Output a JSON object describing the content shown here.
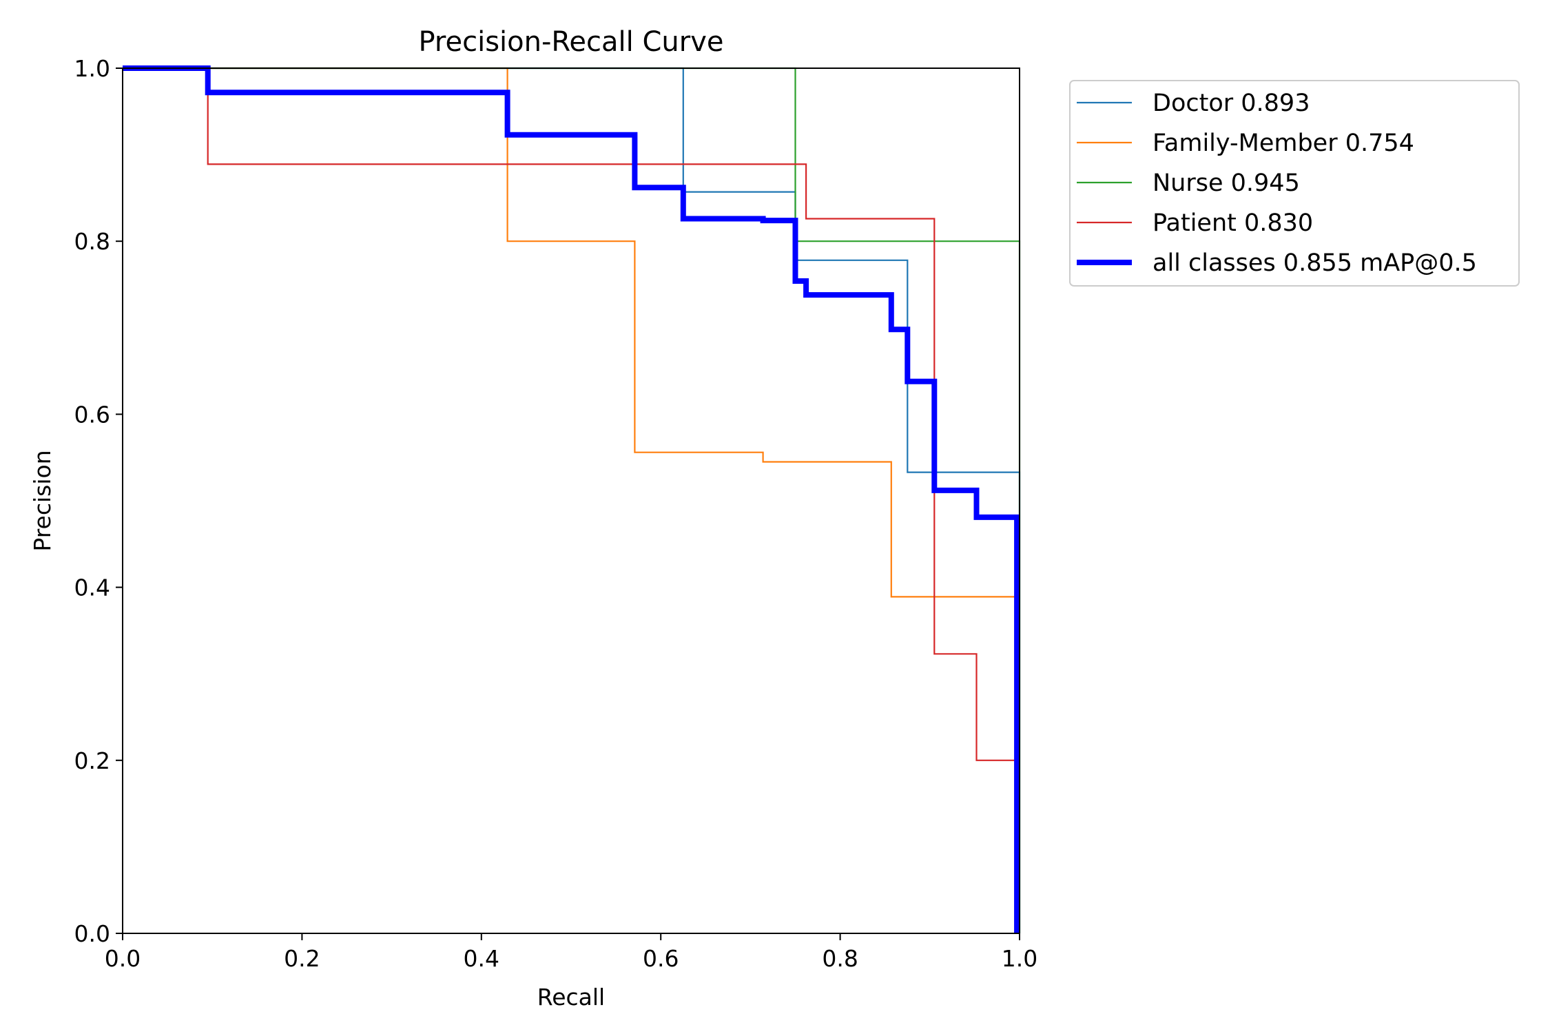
{
  "chart_data": {
    "type": "line",
    "title": "Precision-Recall Curve",
    "xlabel": "Recall",
    "ylabel": "Precision",
    "xlim": [
      0.0,
      1.0
    ],
    "ylim": [
      0.0,
      1.0
    ],
    "xticks": [
      "0.0",
      "0.2",
      "0.4",
      "0.6",
      "0.8",
      "1.0"
    ],
    "yticks": [
      "0.0",
      "0.2",
      "0.4",
      "0.6",
      "0.8",
      "1.0"
    ],
    "grid": false,
    "legend_position": "outside-top-right",
    "series": [
      {
        "name": "Doctor 0.893",
        "color": "#1f77b4",
        "width": "thin",
        "x": [
          0.0,
          0.625,
          0.625,
          0.75,
          0.75,
          0.875,
          0.875,
          1.0,
          1.0
        ],
        "y": [
          1.0,
          1.0,
          0.857,
          0.857,
          0.778,
          0.778,
          0.533,
          0.533,
          0.0
        ]
      },
      {
        "name": "Family-Member 0.754",
        "color": "#ff7f0e",
        "width": "thin",
        "x": [
          0.0,
          0.429,
          0.429,
          0.571,
          0.571,
          0.714,
          0.714,
          0.857,
          0.857,
          0.995,
          0.995
        ],
        "y": [
          1.0,
          1.0,
          0.8,
          0.8,
          0.556,
          0.556,
          0.545,
          0.545,
          0.389,
          0.389,
          0.0
        ]
      },
      {
        "name": "Nurse 0.945",
        "color": "#2ca02c",
        "width": "thin",
        "x": [
          0.0,
          0.75,
          0.75,
          1.0,
          1.0
        ],
        "y": [
          1.0,
          1.0,
          0.8,
          0.8,
          0.0
        ]
      },
      {
        "name": "Patient 0.830",
        "color": "#d62728",
        "width": "thin",
        "x": [
          0.0,
          0.095,
          0.095,
          0.762,
          0.762,
          0.905,
          0.905,
          0.952,
          0.952,
          0.995,
          0.995
        ],
        "y": [
          1.0,
          1.0,
          0.889,
          0.889,
          0.826,
          0.826,
          0.323,
          0.323,
          0.2,
          0.2,
          0.0
        ]
      },
      {
        "name": "all classes 0.855 mAP@0.5",
        "color": "#0000ff",
        "width": "thick",
        "x": [
          0.0,
          0.095,
          0.095,
          0.429,
          0.429,
          0.571,
          0.571,
          0.625,
          0.625,
          0.714,
          0.714,
          0.75,
          0.75,
          0.762,
          0.762,
          0.857,
          0.857,
          0.875,
          0.875,
          0.905,
          0.905,
          0.952,
          0.952,
          0.997,
          0.997
        ],
        "y": [
          1.0,
          1.0,
          0.972,
          0.972,
          0.923,
          0.923,
          0.862,
          0.862,
          0.826,
          0.826,
          0.824,
          0.824,
          0.754,
          0.754,
          0.738,
          0.738,
          0.698,
          0.698,
          0.638,
          0.638,
          0.512,
          0.512,
          0.481,
          0.481,
          0.0
        ]
      }
    ]
  }
}
